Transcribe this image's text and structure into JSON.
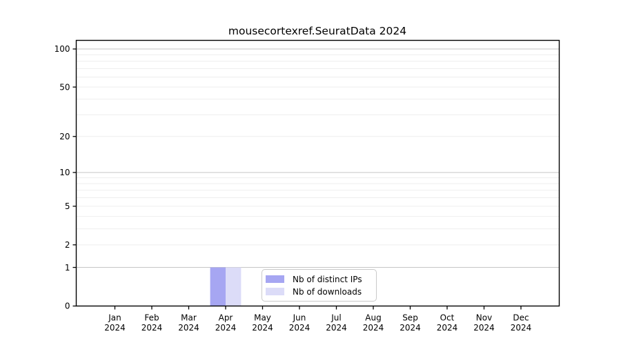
{
  "chart_data": {
    "type": "bar",
    "title": "mousecortexref.SeuratData 2024",
    "categories": [
      "Jan",
      "Feb",
      "Mar",
      "Apr",
      "May",
      "Jun",
      "Jul",
      "Aug",
      "Sep",
      "Oct",
      "Nov",
      "Dec"
    ],
    "year_label": "2024",
    "xlabel": "",
    "ylabel": "",
    "y_scale": "log1p",
    "y_ticks": [
      0,
      1,
      2,
      5,
      10,
      20,
      50,
      100
    ],
    "ylim": [
      0,
      117
    ],
    "grid": "horizontal",
    "grid_minor_color": "#eeeeee",
    "grid_major_color": "#c6c6c6",
    "axis_color": "#000000",
    "legend_position": "inside-bottom-center",
    "series": [
      {
        "name": "Nb of distinct IPs",
        "color": "#a6a6f2",
        "values": [
          0,
          0,
          0,
          1,
          0,
          0,
          0,
          0,
          0,
          0,
          0,
          0
        ]
      },
      {
        "name": "Nb of downloads",
        "color": "#dcdcf8",
        "values": [
          0,
          0,
          0,
          1,
          0,
          0,
          0,
          0,
          0,
          0,
          0,
          0
        ]
      }
    ]
  }
}
